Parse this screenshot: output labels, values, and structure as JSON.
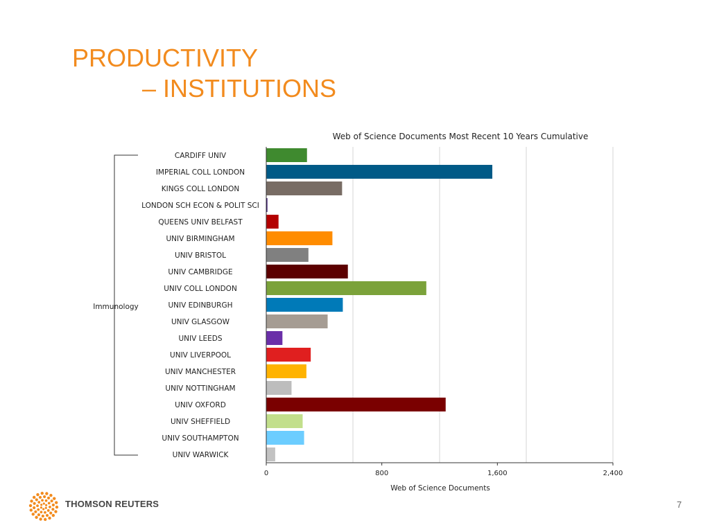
{
  "slide": {
    "title_line1": "PRODUCTIVITY",
    "title_line2": "– INSTITUTIONS",
    "page_number": "7",
    "brand": "THOMSON REUTERS",
    "accent_color": "#f28b1e"
  },
  "chart_data": {
    "type": "bar",
    "orientation": "horizontal",
    "title": "Web of Science Documents Most Recent 10 Years Cumulative",
    "xlabel": "Web of Science Documents",
    "group_label": "Immunology",
    "xlim": [
      0,
      2400
    ],
    "xticks": [
      0,
      800,
      1600,
      2400
    ],
    "xtick_labels": [
      "0",
      "800",
      "1,600",
      "2,400"
    ],
    "grid": true,
    "categories": [
      "CARDIFF UNIV",
      "IMPERIAL COLL LONDON",
      "KINGS COLL LONDON",
      "LONDON SCH ECON & POLIT SCI",
      "QUEENS UNIV BELFAST",
      "UNIV BIRMINGHAM",
      "UNIV BRISTOL",
      "UNIV CAMBRIDGE",
      "UNIV COLL LONDON",
      "UNIV EDINBURGH",
      "UNIV GLASGOW",
      "UNIV LEEDS",
      "UNIV LIVERPOOL",
      "UNIV MANCHESTER",
      "UNIV NOTTINGHAM",
      "UNIV OXFORD",
      "UNIV SHEFFIELD",
      "UNIV SOUTHAMPTON",
      "UNIV WARWICK"
    ],
    "values": [
      282,
      1565,
      525,
      8,
      85,
      458,
      292,
      565,
      1108,
      530,
      425,
      112,
      308,
      278,
      175,
      1242,
      252,
      262,
      62
    ],
    "colors": [
      "#3f8a2f",
      "#005a87",
      "#786c64",
      "#3d1a75",
      "#b30000",
      "#ff8c00",
      "#808080",
      "#5c0000",
      "#7ba23a",
      "#007ab8",
      "#a59c93",
      "#6a2fa8",
      "#e01f1f",
      "#ffb300",
      "#bdbdbd",
      "#7a0000",
      "#c2df8b",
      "#6ccdff",
      "#c2c2c2"
    ]
  }
}
